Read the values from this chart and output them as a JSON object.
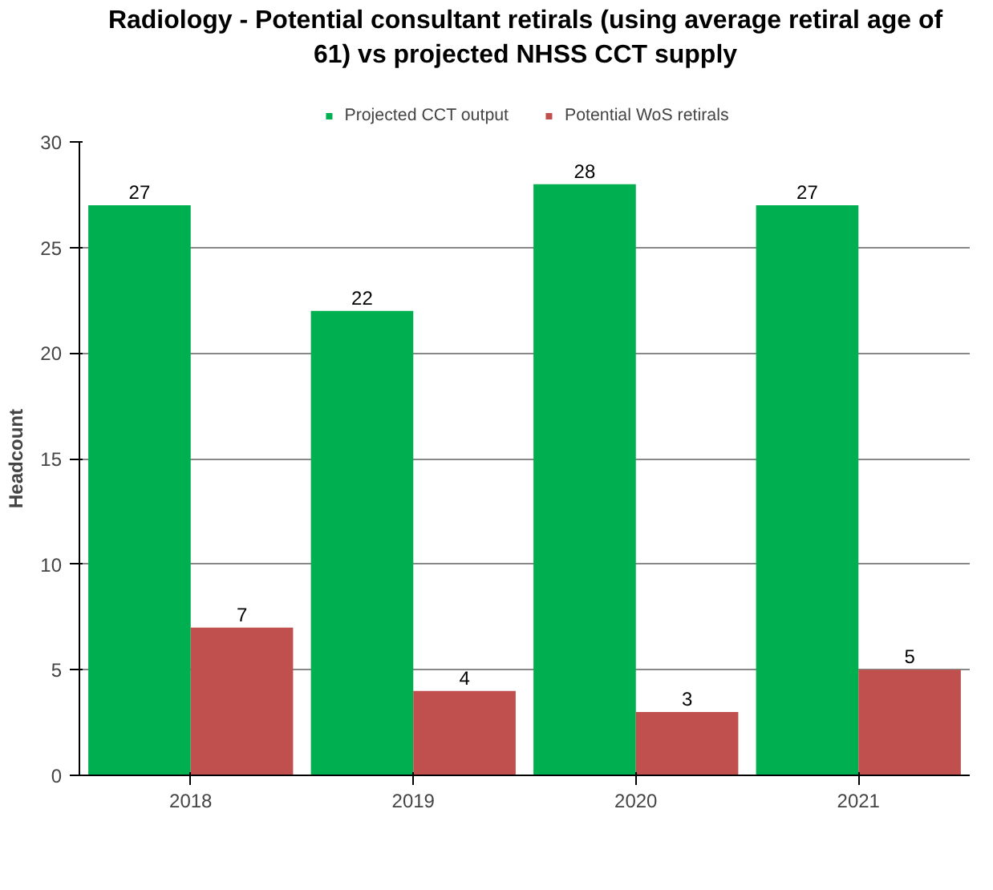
{
  "chart_data": {
    "type": "bar",
    "title": "Radiology - Potential consultant retirals (using average retiral age of 61) vs projected NHSS CCT supply",
    "ylabel": "Headcount",
    "categories": [
      "2018",
      "2019",
      "2020",
      "2021"
    ],
    "series": [
      {
        "name": "Projected CCT output",
        "color": "#00b050",
        "values": [
          27,
          22,
          28,
          27
        ]
      },
      {
        "name": "Potential WoS retirals",
        "color": "#c0504d",
        "values": [
          7,
          4,
          3,
          5
        ]
      }
    ],
    "ylim": [
      0,
      30
    ],
    "yticks": [
      0,
      5,
      10,
      15,
      20,
      25,
      30
    ],
    "grid": "y",
    "legend": "top",
    "data_labels": true
  }
}
